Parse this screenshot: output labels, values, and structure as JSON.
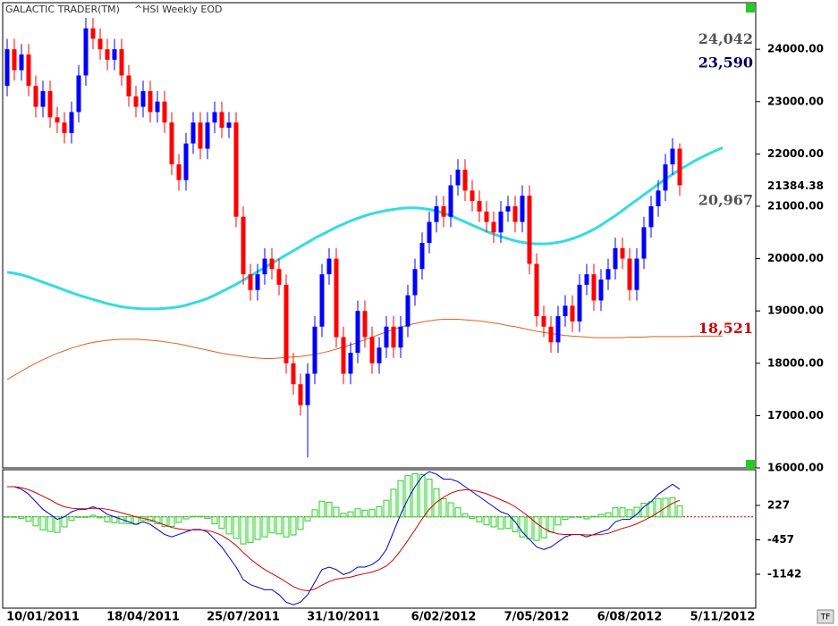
{
  "header": {
    "title": "GALACTIC TRADER(TM)",
    "subtitle": "^HSI Weekly EOD",
    "corner_label": "TF"
  },
  "chart_data": [
    {
      "type": "candlestick",
      "categories": [
        null,
        null,
        null,
        null,
        null,
        "10/01/2011",
        null,
        null,
        null,
        null,
        null,
        null,
        null,
        null,
        null,
        null,
        null,
        null,
        null,
        "18/04/2011",
        null,
        null,
        null,
        null,
        null,
        null,
        null,
        null,
        null,
        null,
        null,
        null,
        null,
        "25/07/2011",
        null,
        null,
        null,
        null,
        null,
        null,
        null,
        null,
        null,
        null,
        null,
        null,
        null,
        "31/10/2011",
        null,
        null,
        null,
        null,
        null,
        null,
        null,
        null,
        null,
        null,
        null,
        null,
        null,
        "6/02/2012",
        null,
        null,
        null,
        null,
        null,
        null,
        null,
        null,
        null,
        null,
        null,
        null,
        "7/05/2012",
        null,
        null,
        null,
        null,
        null,
        null,
        null,
        null,
        null,
        null,
        null,
        null,
        "6/08/2012",
        null,
        null,
        null,
        null,
        null,
        null,
        null,
        null,
        null,
        null,
        null,
        null,
        "5/11/2012"
      ],
      "open": [
        23300,
        24000,
        23600,
        23900,
        23300,
        22900,
        23200,
        22700,
        22600,
        22400,
        22800,
        23500,
        24400,
        24200,
        24000,
        23800,
        24000,
        23500,
        23100,
        22900,
        23200,
        22800,
        23000,
        22600,
        21800,
        21500,
        22200,
        22600,
        22100,
        22600,
        22800,
        22500,
        22600,
        20800,
        19700,
        19400,
        19700,
        20000,
        19800,
        19500,
        18000,
        17600,
        17200,
        17800,
        18700,
        19700,
        20000,
        18500,
        17800,
        18200,
        19000,
        18500,
        18000,
        18300,
        18700,
        18300,
        18700,
        19300,
        19800,
        20300,
        20700,
        21000,
        20800,
        21400,
        21700,
        21300,
        21100,
        20900,
        20700,
        20500,
        20900,
        21000,
        20700,
        21200,
        19900,
        18900,
        18700,
        18400,
        18900,
        19100,
        18800,
        19500,
        19700,
        19200,
        19600,
        19800,
        20200,
        20000,
        19400,
        20000,
        20600,
        21000,
        21300,
        21800,
        22100,
        null,
        null,
        null,
        null,
        null,
        null
      ],
      "high": [
        24200,
        24200,
        24100,
        24100,
        23500,
        23400,
        23400,
        22900,
        22800,
        23000,
        23700,
        24600,
        24600,
        24400,
        24200,
        24200,
        24200,
        23700,
        23300,
        23400,
        23400,
        23200,
        23200,
        22800,
        22000,
        22400,
        22800,
        22800,
        22800,
        23000,
        23000,
        22800,
        22800,
        21000,
        19900,
        19900,
        20200,
        20200,
        20000,
        19700,
        18200,
        17800,
        18000,
        18900,
        19900,
        20200,
        20200,
        18700,
        18400,
        19200,
        19200,
        18700,
        18500,
        18900,
        18900,
        18900,
        19500,
        20000,
        20500,
        20900,
        21200,
        21200,
        21600,
        21900,
        21900,
        21500,
        21300,
        21100,
        20900,
        21100,
        21200,
        21200,
        21400,
        21400,
        20100,
        19100,
        18900,
        19100,
        19300,
        19300,
        19700,
        19900,
        19900,
        19800,
        20000,
        20400,
        20400,
        20200,
        20200,
        20800,
        21200,
        21500,
        22000,
        22300,
        22200,
        null,
        null,
        null,
        null,
        null,
        null
      ],
      "low": [
        23100,
        23400,
        23400,
        23100,
        22700,
        22700,
        22500,
        22400,
        22200,
        22200,
        22600,
        23300,
        24000,
        23800,
        23600,
        23600,
        23300,
        22900,
        22700,
        22700,
        22600,
        22600,
        22400,
        21600,
        21300,
        21300,
        22000,
        21900,
        21900,
        22400,
        22300,
        22300,
        20600,
        19500,
        19200,
        19200,
        19500,
        19600,
        19300,
        17800,
        17400,
        17000,
        16200,
        17600,
        18500,
        19500,
        18300,
        17600,
        17600,
        18000,
        18300,
        17800,
        17800,
        18100,
        18100,
        18100,
        18500,
        19100,
        19600,
        20100,
        20500,
        20600,
        20600,
        21200,
        21100,
        20900,
        20700,
        20500,
        20300,
        20300,
        20700,
        20500,
        20500,
        19700,
        18700,
        18500,
        18200,
        18200,
        18700,
        18600,
        18600,
        19300,
        19000,
        19000,
        19400,
        19600,
        19800,
        19200,
        19200,
        19800,
        20400,
        20800,
        21100,
        21600,
        21200,
        null,
        null,
        null,
        null,
        null,
        null
      ],
      "close": [
        24000,
        23600,
        23900,
        23300,
        22900,
        23200,
        22700,
        22600,
        22400,
        22800,
        23500,
        24400,
        24200,
        24000,
        23800,
        24000,
        23500,
        23100,
        22900,
        23200,
        22800,
        23000,
        22600,
        21800,
        21500,
        22200,
        22600,
        22100,
        22600,
        22800,
        22500,
        22600,
        20800,
        19700,
        19400,
        19700,
        20000,
        19800,
        19500,
        18000,
        17600,
        17200,
        17800,
        18700,
        19700,
        20000,
        18500,
        17800,
        18200,
        19000,
        18500,
        18000,
        18300,
        18700,
        18300,
        18700,
        19300,
        19800,
        20300,
        20700,
        21000,
        20800,
        21400,
        21700,
        21300,
        21100,
        20900,
        20700,
        20500,
        20900,
        21000,
        20700,
        21200,
        19900,
        18900,
        18700,
        18400,
        18900,
        19100,
        18800,
        19500,
        19700,
        19200,
        19600,
        19800,
        20200,
        20000,
        19400,
        20000,
        20600,
        21000,
        21300,
        21800,
        22100,
        21400,
        null,
        null,
        null,
        null,
        null,
        null
      ],
      "up_color": "#0000ff",
      "down_color": "#ff0000",
      "overlays": [
        {
          "color": "#33dddd",
          "width": 3,
          "values": [
            19740,
            19720,
            19690,
            19650,
            19600,
            19550,
            19500,
            19450,
            19400,
            19350,
            19300,
            19260,
            19220,
            19180,
            19140,
            19110,
            19080,
            19060,
            19050,
            19040,
            19040,
            19040,
            19050,
            19060,
            19080,
            19110,
            19150,
            19190,
            19240,
            19300,
            19370,
            19440,
            19510,
            19590,
            19670,
            19750,
            19830,
            19910,
            19990,
            20070,
            20150,
            20230,
            20310,
            20390,
            20460,
            20530,
            20600,
            20660,
            20720,
            20770,
            20820,
            20860,
            20890,
            20920,
            20940,
            20960,
            20970,
            20970,
            20960,
            20940,
            20910,
            20870,
            20820,
            20760,
            20700,
            20640,
            20580,
            20520,
            20470,
            20420,
            20380,
            20340,
            20310,
            20290,
            20280,
            20280,
            20290,
            20310,
            20340,
            20380,
            20430,
            20490,
            20560,
            20640,
            20730,
            20820,
            20920,
            21020,
            21120,
            21220,
            21320,
            21420,
            21520,
            21610,
            21700,
            21780,
            21860,
            21930,
            22000,
            22060,
            22120
          ]
        },
        {
          "color": "#e06020",
          "width": 1,
          "values": [
            17690,
            17770,
            17850,
            17930,
            18000,
            18070,
            18130,
            18190,
            18240,
            18290,
            18330,
            18370,
            18400,
            18420,
            18440,
            18450,
            18460,
            18460,
            18460,
            18450,
            18440,
            18430,
            18410,
            18390,
            18370,
            18340,
            18310,
            18280,
            18250,
            18220,
            18190,
            18170,
            18150,
            18130,
            18110,
            18100,
            18090,
            18090,
            18100,
            18110,
            18120,
            18130,
            18150,
            18170,
            18200,
            18230,
            18270,
            18310,
            18350,
            18400,
            18450,
            18500,
            18550,
            18600,
            18650,
            18690,
            18730,
            18760,
            18790,
            18810,
            18830,
            18840,
            18840,
            18840,
            18830,
            18820,
            18810,
            18790,
            18770,
            18750,
            18720,
            18700,
            18670,
            18640,
            18610,
            18590,
            18570,
            18550,
            18530,
            18520,
            18510,
            18500,
            18490,
            18490,
            18490,
            18490,
            18490,
            18500,
            18500,
            18500,
            18510,
            18510,
            18510,
            18510,
            18510,
            18510,
            18520,
            18520,
            18520,
            18520,
            18521
          ]
        }
      ],
      "annotations": [
        {
          "value": 24042,
          "label": "24,042",
          "color": "#555555"
        },
        {
          "value": 23590,
          "label": "23,590",
          "color": "#000060"
        },
        {
          "value": 21384.38,
          "label": "21384.38",
          "color": "#000000"
        },
        {
          "value": 20967,
          "label": "20,967",
          "color": "#555555"
        },
        {
          "value": 18521,
          "label": "18,521",
          "color": "#cc0000"
        }
      ],
      "ylim": [
        16000,
        24890
      ],
      "yticks": [
        {
          "value": 16000,
          "label": "16000.00"
        },
        {
          "value": 17000,
          "label": "17000.00"
        },
        {
          "value": 18000,
          "label": "18000.00"
        },
        {
          "value": 19000,
          "label": "19000.00"
        },
        {
          "value": 20000,
          "label": "20000.00"
        },
        {
          "value": 21000,
          "label": "21000.00"
        },
        {
          "value": 22000,
          "label": "22000.00"
        },
        {
          "value": 23000,
          "label": "23000.00"
        },
        {
          "value": 24000,
          "label": "24000.00"
        }
      ]
    },
    {
      "type": "macd",
      "series": [
        {
          "kind": "bar",
          "color": "#33cc33",
          "values": [
            0,
            0,
            -30,
            -90,
            -180,
            -260,
            -290,
            -310,
            -200,
            -70,
            -10,
            -10,
            30,
            -20,
            -100,
            -120,
            -130,
            -140,
            -150,
            -70,
            -90,
            -140,
            -190,
            -190,
            -110,
            -40,
            10,
            10,
            -30,
            -140,
            -230,
            -340,
            -430,
            -540,
            -510,
            -450,
            -400,
            -320,
            -340,
            -400,
            -360,
            -250,
            -80,
            140,
            310,
            290,
            190,
            70,
            100,
            160,
            130,
            150,
            200,
            330,
            550,
            720,
            820,
            860,
            840,
            750,
            560,
            360,
            280,
            180,
            60,
            -30,
            -100,
            -160,
            -200,
            -240,
            -230,
            -300,
            -400,
            -440,
            -470,
            -420,
            -300,
            -160,
            -50,
            0,
            0,
            -40,
            10,
            50,
            80,
            180,
            180,
            140,
            190,
            270,
            300,
            360,
            370,
            380,
            220,
            null,
            null,
            null,
            null,
            null,
            null
          ]
        },
        {
          "kind": "line",
          "color": "#0000cc",
          "values": [
            600,
            600,
            550,
            450,
            300,
            150,
            50,
            -50,
            0,
            100,
            150,
            150,
            200,
            150,
            50,
            0,
            -50,
            -100,
            -150,
            -100,
            -150,
            -250,
            -350,
            -400,
            -350,
            -300,
            -250,
            -250,
            -300,
            -450,
            -600,
            -800,
            -1000,
            -1250,
            -1350,
            -1400,
            -1450,
            -1450,
            -1550,
            -1700,
            -1750,
            -1700,
            -1550,
            -1300,
            -1050,
            -1000,
            -1050,
            -1150,
            -1100,
            -1000,
            -1000,
            -950,
            -850,
            -650,
            -300,
            50,
            350,
            600,
            800,
            900,
            850,
            750,
            750,
            700,
            600,
            500,
            400,
            300,
            200,
            100,
            50,
            -100,
            -300,
            -450,
            -600,
            -650,
            -600,
            -500,
            -400,
            -350,
            -350,
            -400,
            -350,
            -300,
            -250,
            -100,
            -50,
            -50,
            50,
            200,
            300,
            450,
            550,
            650,
            550,
            null,
            null,
            null,
            null,
            null,
            null
          ]
        },
        {
          "kind": "line",
          "color": "#cc0000",
          "values": [
            600,
            600,
            580,
            540,
            480,
            410,
            340,
            260,
            200,
            170,
            160,
            160,
            170,
            170,
            150,
            120,
            80,
            40,
            0,
            -30,
            -60,
            -110,
            -160,
            -210,
            -240,
            -260,
            -260,
            -260,
            -270,
            -310,
            -370,
            -460,
            -570,
            -710,
            -840,
            -950,
            -1050,
            -1130,
            -1210,
            -1300,
            -1390,
            -1450,
            -1470,
            -1440,
            -1360,
            -1290,
            -1240,
            -1220,
            -1200,
            -1160,
            -1130,
            -1100,
            -1050,
            -980,
            -850,
            -670,
            -470,
            -260,
            -40,
            150,
            290,
            390,
            470,
            520,
            540,
            530,
            500,
            460,
            400,
            340,
            280,
            200,
            100,
            -10,
            -130,
            -230,
            -300,
            -340,
            -350,
            -350,
            -350,
            -360,
            -360,
            -350,
            -330,
            -280,
            -230,
            -190,
            -140,
            -70,
            0,
            90,
            180,
            270,
            330,
            null,
            null,
            null,
            null,
            null,
            null
          ]
        }
      ],
      "ylim": [
        -1800,
        920
      ],
      "yticks": [
        227,
        -457,
        -1142
      ]
    }
  ]
}
